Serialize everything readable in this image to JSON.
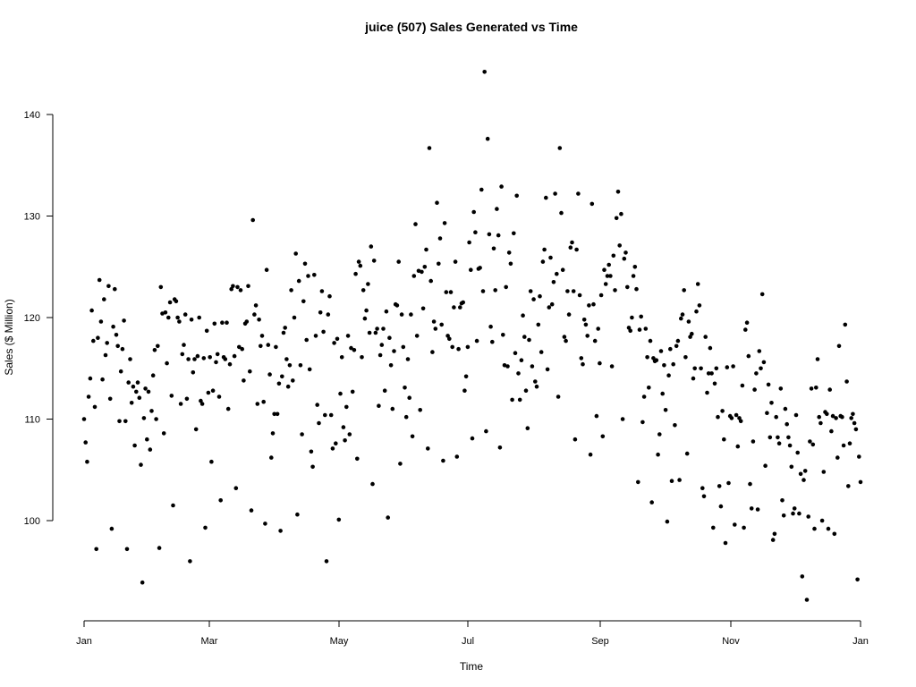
{
  "chart_data": {
    "type": "scatter",
    "title": "juice (507) Sales Generated vs Time",
    "xlabel": "Time",
    "ylabel": "Sales ($ Million)",
    "x_ticks": [
      "Jan",
      "Mar",
      "May",
      "Jul",
      "Sep",
      "Nov",
      "Jan"
    ],
    "y_ticks": [
      100,
      110,
      120,
      130,
      140
    ],
    "xlim": [
      "Jan",
      "Jan"
    ],
    "ylim": [
      91,
      144
    ],
    "grid": false,
    "legend": "none",
    "marker_color": "#000000",
    "series": [
      {
        "values": [
          110,
          107.7,
          105.8,
          112.2,
          114,
          120.7,
          117.7,
          111.2,
          97.2,
          118,
          123.7,
          119.6,
          113.9,
          121.8,
          116.3,
          117.5,
          123.1,
          112,
          99.2,
          119.1,
          122.8,
          118.3,
          117.2,
          109.8,
          114.7,
          116.9,
          119.7,
          109.8,
          97.2,
          113.6,
          115.9,
          111.6,
          113.2,
          107.4,
          112.7,
          113.6,
          112.1,
          105.5,
          93.9,
          110.1,
          113,
          108,
          112.7,
          107,
          110.8,
          114.3,
          116.8,
          110,
          117.2,
          97.3,
          123,
          120.4,
          108.6,
          120.5,
          115.5,
          120,
          121.5,
          112.3,
          101.5,
          121.8,
          121.6,
          120,
          119.6,
          111.5,
          116.4,
          117.3,
          120.3,
          112,
          115.9,
          96,
          119.8,
          114.6,
          115.9,
          109,
          116.2,
          120,
          111.8,
          111.5,
          116,
          99.3,
          118.7,
          112.6,
          116.1,
          105.8,
          112.8,
          119.4,
          115.6,
          116.4,
          112.2,
          102,
          119.5,
          116.1,
          115.9,
          119.5,
          111,
          115.4,
          122.8,
          123.1,
          116.2,
          103.2,
          123,
          117.1,
          122.7,
          116.9,
          113.8,
          119.4,
          119.6,
          123.1,
          114.7,
          101,
          129.6,
          120.3,
          121.2,
          111.5,
          119.8,
          117.2,
          118.2,
          111.7,
          99.7,
          124.7,
          117.3,
          114.4,
          106.2,
          108.6,
          110.5,
          117.1,
          110.5,
          113.5,
          99,
          114.2,
          118.5,
          119,
          115.9,
          113.2,
          115.3,
          122.7,
          113.8,
          120,
          126.3,
          100.6,
          123.6,
          115.3,
          108.5,
          121.6,
          125.3,
          117.8,
          124.1,
          114.9,
          106.8,
          105.3,
          124.2,
          118.2,
          111.4,
          109.6,
          120.5,
          122.6,
          118.6,
          110.4,
          96,
          120.3,
          122.1,
          110.4,
          107.1,
          117.5,
          107.6,
          117.9,
          100.1,
          112.5,
          116.1,
          109.2,
          107.9,
          111.2,
          118.2,
          108.5,
          117,
          112.7,
          116.8,
          124.3,
          106.1,
          125.5,
          125.1,
          116.1,
          122.7,
          119.9,
          120.7,
          123.3,
          118.5,
          127,
          103.6,
          125.6,
          118.5,
          118.9,
          111.3,
          116.3,
          117.3,
          118.9,
          112.8,
          120.6,
          100.3,
          118,
          115.3,
          111,
          116.7,
          121.3,
          121.2,
          125.5,
          105.6,
          120.3,
          117.1,
          113.1,
          110.2,
          115.9,
          112.1,
          120.3,
          108.3,
          124.1,
          129.2,
          118.2,
          124.6,
          110.9,
          124.5,
          120.9,
          125,
          126.7,
          107.1,
          136.7,
          123.6,
          116.6,
          119.6,
          118.9,
          131.3,
          125.3,
          127.8,
          119.3,
          105.9,
          129.3,
          122.5,
          118.2,
          117.9,
          122.5,
          117.1,
          121,
          125.5,
          106.3,
          116.9,
          121,
          121.4,
          121.5,
          112.8,
          114.2,
          117.1,
          127.4,
          124.7,
          108.1,
          130.4,
          128.4,
          117.7,
          124.8,
          124.9,
          132.6,
          122.6,
          144.2,
          108.8,
          137.6,
          128.2,
          119.1,
          117.6,
          126.8,
          122.7,
          130.7,
          128.1,
          107.2,
          132.9,
          118.3,
          115.3,
          123,
          115.2,
          126.4,
          125.3,
          111.9,
          128.3,
          116.5,
          132,
          114.5,
          111.9,
          115.8,
          120.2,
          118.1,
          112.8,
          109.1,
          117.8,
          122.6,
          115.2,
          121.8,
          113.7,
          113.2,
          119.3,
          122.1,
          116.6,
          125.5,
          126.7,
          131.8,
          114.9,
          121,
          125.9,
          121.3,
          123.5,
          132.2,
          124.3,
          112.2,
          136.7,
          130.3,
          124.7,
          118.1,
          117.7,
          122.6,
          120.3,
          126.9,
          127.4,
          122.6,
          108,
          126.7,
          132.2,
          122.2,
          116,
          115.4,
          119.8,
          119.3,
          118.2,
          121.2,
          106.5,
          131.2,
          121.3,
          117.7,
          110.3,
          118.9,
          115.5,
          122.2,
          108.3,
          124.7,
          123.3,
          124.1,
          125.2,
          124.1,
          115.2,
          126.1,
          122.7,
          129.8,
          132.4,
          127.1,
          130.2,
          110,
          125.8,
          126.4,
          123,
          119,
          118.7,
          120,
          124.1,
          125,
          122.8,
          103.8,
          118.8,
          120.1,
          109.7,
          112.2,
          118.9,
          116.1,
          113.1,
          117.7,
          101.8,
          116,
          115.7,
          115.8,
          106.5,
          108.5,
          116.7,
          112.5,
          115.3,
          110.9,
          99.9,
          114.3,
          116.9,
          103.9,
          115.4,
          109.4,
          117.2,
          117.7,
          104,
          119.9,
          120.3,
          122.7,
          116.1,
          106.6,
          119.6,
          118.1,
          118.4,
          114,
          115,
          120.6,
          123.3,
          121.2,
          115,
          103.2,
          102.4,
          118.1,
          112.6,
          114.5,
          117,
          114.5,
          99.3,
          113.5,
          115,
          110.2,
          103.4,
          101.4,
          110.8,
          108,
          97.8,
          115.1,
          103.7,
          110.3,
          110.1,
          115.2,
          99.6,
          110.4,
          107.3,
          110.1,
          109.8,
          113.3,
          99.3,
          118.8,
          119.5,
          116.2,
          103.6,
          101.2,
          107.8,
          112.9,
          114.5,
          101.1,
          116.7,
          115,
          122.3,
          115.6,
          105.4,
          110.6,
          113.4,
          108.2,
          111.6,
          98.1,
          98.7,
          110.2,
          108.2,
          107.6,
          113,
          102,
          100.5,
          111,
          109.5,
          108.2,
          107.4,
          105.3,
          100.7,
          101.2,
          110.4,
          106.7,
          100.7,
          104.6,
          94.5,
          104,
          104.9,
          92.2,
          100.4,
          107.8,
          113,
          107.5,
          99.2,
          113.1,
          115.9,
          110.2,
          109.6,
          100,
          104.8,
          110.7,
          110.5,
          99.2,
          112.9,
          108.8,
          110.3,
          98.7,
          110.1,
          106.2,
          117.2,
          110.3,
          110.2,
          107.4,
          119.3,
          113.7,
          103.4,
          107.6,
          110.1,
          110.5,
          109.6,
          109,
          94.2,
          106.3,
          103.8
        ]
      }
    ]
  }
}
